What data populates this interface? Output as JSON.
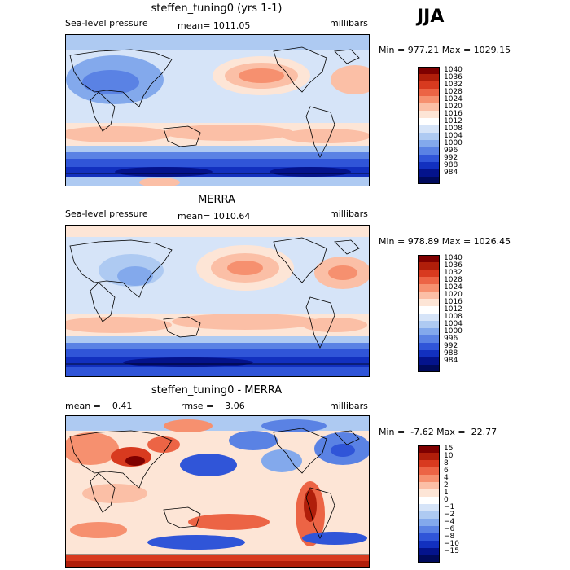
{
  "season": "JJA",
  "panels": [
    {
      "title": "steffen_tuning0 (yrs 1-1)",
      "left_label": "Sea-level pressure",
      "center_label": "mean= 1011.05",
      "right_label": "millibars",
      "range": "Min = 977.21 Max = 1029.15",
      "colorbar": [
        "1040",
        "1036",
        "1032",
        "1028",
        "1024",
        "1020",
        "1016",
        "1012",
        "1008",
        "1004",
        "1000",
        "996",
        "992",
        "988",
        "984"
      ]
    },
    {
      "title": "MERRA",
      "left_label": "Sea-level pressure",
      "center_label": "mean= 1010.64",
      "right_label": "millibars",
      "range": "Min = 978.89 Max = 1026.45",
      "colorbar": [
        "1040",
        "1036",
        "1032",
        "1028",
        "1024",
        "1020",
        "1016",
        "1012",
        "1008",
        "1004",
        "1000",
        "996",
        "992",
        "988",
        "984"
      ]
    },
    {
      "title": "steffen_tuning0 - MERRA",
      "left_label": "mean =    0.41",
      "center_label": "rmse =    3.06",
      "right_label": "millibars",
      "range": "Min =  -7.62 Max =  22.77",
      "colorbar": [
        "15",
        "10",
        "8",
        "6",
        "4",
        "2",
        "1",
        "0",
        "−1",
        "−2",
        "−4",
        "−6",
        "−8",
        "−10",
        "−15"
      ]
    }
  ],
  "colors": {
    "scale": [
      "#7f0000",
      "#b01e0a",
      "#d83a1f",
      "#ec6445",
      "#f6906f",
      "#fbbfa6",
      "#fde5d6",
      "#ffffff",
      "#d6e4f8",
      "#aecaf2",
      "#83a9ec",
      "#5a82e4",
      "#3055d8",
      "#1230bf",
      "#04138c",
      "#000a5c"
    ]
  }
}
